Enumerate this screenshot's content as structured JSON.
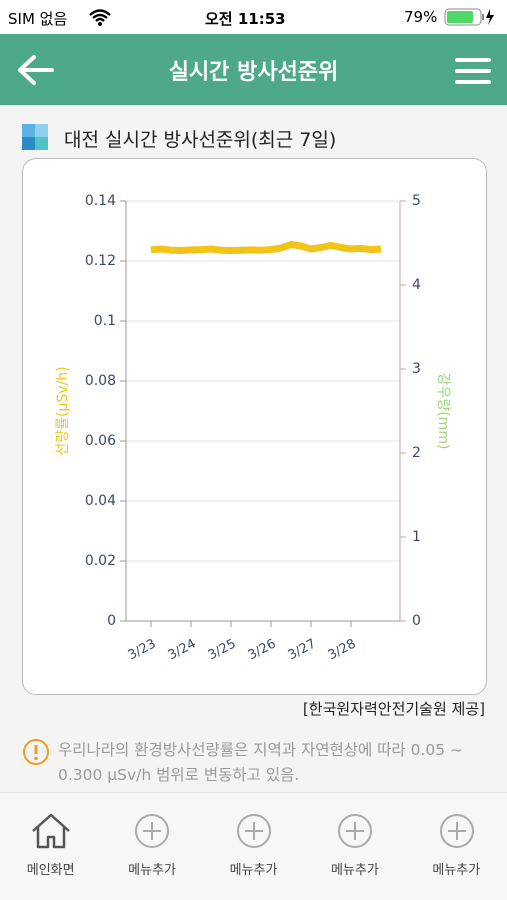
{
  "status": {
    "carrier": "SIM 없음",
    "time": "오전 11:53",
    "battery": "79%"
  },
  "header": {
    "title": "실시간 방사선준위"
  },
  "section_title": "대전 실시간 방사선준위(최근 7일)",
  "chart_data": {
    "type": "line",
    "categories": [
      "3/23",
      null,
      null,
      null,
      "3/24",
      null,
      null,
      null,
      "3/25",
      null,
      null,
      null,
      "3/26",
      null,
      null,
      null,
      "3/27",
      null,
      null,
      null,
      "3/28",
      null,
      null,
      null
    ],
    "series": [
      {
        "name": "선량률",
        "color": "#f2c417",
        "values": [
          0.1238,
          0.124,
          0.1236,
          0.1235,
          0.1237,
          0.1238,
          0.124,
          0.1236,
          0.1235,
          0.1236,
          0.1237,
          0.1236,
          0.1238,
          0.1243,
          0.1255,
          0.125,
          0.124,
          0.1245,
          0.1252,
          0.1245,
          0.124,
          0.1242,
          0.1238,
          0.124
        ]
      }
    ],
    "ylabel": "선량률(μSv/h)",
    "y2label": "강우량(mm)",
    "ylim": [
      0,
      0.14
    ],
    "yticks": [
      0,
      0.02,
      0.04,
      0.06,
      0.08,
      0.1,
      0.12,
      0.14
    ],
    "y2lim": [
      0,
      5
    ],
    "y2ticks": [
      0,
      1,
      2,
      3,
      4,
      5
    ],
    "grid": true
  },
  "source": "[한국원자력안전기술원 제공]",
  "notice": "우리나라의 환경방사선량률은 지역과 자연현상에 따라 0.05 ~ 0.300 μSv/h 범위로 변동하고 있음.",
  "tabs": [
    "메인화면",
    "메뉴추가",
    "메뉴추가",
    "메뉴추가",
    "메뉴추가"
  ]
}
